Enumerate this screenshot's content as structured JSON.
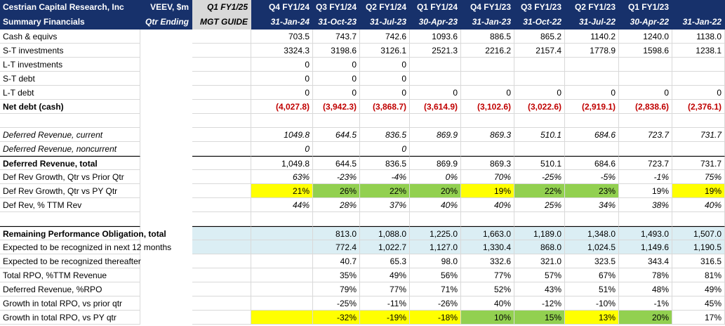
{
  "header": {
    "row1": [
      "Cestrian Capital Research, Inc",
      "VEEV, $m",
      "Q1 FY1/25",
      "Q4 FY1/24",
      "Q3 FY1/24",
      "Q2 FY1/24",
      "Q1 FY1/24",
      "Q4 FY1/23",
      "Q3 FY1/23",
      "Q2 FY1/23",
      "Q1 FY1/23",
      ""
    ],
    "row2": [
      "Summary Financials",
      "Qtr Ending",
      "MGT GUIDE",
      "31-Jan-24",
      "31-Oct-23",
      "31-Jul-23",
      "30-Apr-23",
      "31-Jan-23",
      "31-Oct-22",
      "31-Jul-22",
      "30-Apr-22",
      "31-Jan-22"
    ]
  },
  "highlight_colors": {
    "yellow": "#ffff00",
    "green": "#92d050",
    "light_blue": "#dbeef4",
    "header_navy": "#17316b",
    "negative_red": "#c00000"
  },
  "rows": [
    {
      "label": "Cash & equivs",
      "style": "",
      "values": [
        "",
        "703.5",
        "743.7",
        "742.6",
        "1093.6",
        "886.5",
        "865.2",
        "1140.2",
        "1240.0",
        "1138.0"
      ]
    },
    {
      "label": "S-T investments",
      "style": "",
      "values": [
        "",
        "3324.3",
        "3198.6",
        "3126.1",
        "2521.3",
        "2216.2",
        "2157.4",
        "1778.9",
        "1598.6",
        "1238.1"
      ]
    },
    {
      "label": "L-T investments",
      "style": "",
      "values": [
        "",
        "0",
        "0",
        "0",
        "",
        "",
        "",
        "",
        "",
        ""
      ]
    },
    {
      "label": "S-T debt",
      "style": "",
      "values": [
        "",
        "0",
        "0",
        "0",
        "",
        "",
        "",
        "",
        "",
        ""
      ]
    },
    {
      "label": "L-T debt",
      "style": "",
      "values": [
        "",
        "0",
        "0",
        "0",
        "0",
        "0",
        "0",
        "0",
        "0",
        "0"
      ]
    },
    {
      "label": "Net debt (cash)",
      "style": "bold",
      "neg": true,
      "values": [
        "",
        "(4,027.8)",
        "(3,942.3)",
        "(3,868.7)",
        "(3,614.9)",
        "(3,102.6)",
        "(3,022.6)",
        "(2,919.1)",
        "(2,838.6)",
        "(2,376.1)"
      ]
    },
    {
      "label": "",
      "style": "",
      "values": [
        "",
        "",
        "",
        "",
        "",
        "",
        "",
        "",
        "",
        ""
      ]
    },
    {
      "label": "Deferred Revenue, current",
      "style": "italic",
      "values": [
        "",
        "1049.8",
        "644.5",
        "836.5",
        "869.9",
        "869.3",
        "510.1",
        "684.6",
        "723.7",
        "731.7"
      ]
    },
    {
      "label": "Deferred Revenue, noncurrent",
      "style": "italic",
      "values": [
        "",
        "0",
        "",
        "0",
        "",
        "",
        "",
        "",
        "",
        ""
      ]
    },
    {
      "label": "Deferred Revenue, total",
      "style": "bold-label",
      "topline": true,
      "values": [
        "",
        "1,049.8",
        "644.5",
        "836.5",
        "869.9",
        "869.3",
        "510.1",
        "684.6",
        "723.7",
        "731.7"
      ]
    },
    {
      "label": "Def Rev Growth, Qtr vs Prior Qtr",
      "style": "italic-values",
      "values": [
        "",
        "63%",
        "-23%",
        "-4%",
        "0%",
        "70%",
        "-25%",
        "-5%",
        "-1%",
        "75%"
      ]
    },
    {
      "label": "Def Rev Growth, Qtr vs PY Qtr",
      "style": "",
      "values": [
        "",
        "21%",
        "26%",
        "22%",
        "20%",
        "19%",
        "22%",
        "23%",
        "19%",
        "19%"
      ],
      "hl": [
        "",
        "y",
        "g",
        "g",
        "g",
        "y",
        "g",
        "g",
        "",
        "y"
      ]
    },
    {
      "label": "Def Rev, % TTM Rev",
      "style": "italic-values",
      "values": [
        "",
        "44%",
        "28%",
        "37%",
        "40%",
        "40%",
        "25%",
        "34%",
        "38%",
        "40%"
      ]
    },
    {
      "label": "",
      "style": "",
      "values": [
        "",
        "",
        "",
        "",
        "",
        "",
        "",
        "",
        "",
        ""
      ]
    },
    {
      "label": "Remaining Performance Obligation, total",
      "style": "bold-label",
      "topline": true,
      "values": [
        "",
        "",
        "813.0",
        "1,088.0",
        "1,225.0",
        "1,663.0",
        "1,189.0",
        "1,348.0",
        "1,493.0",
        "1,507.0"
      ],
      "hl": [
        "b",
        "b",
        "b",
        "b",
        "b",
        "b",
        "b",
        "b",
        "b",
        "b"
      ]
    },
    {
      "label": "Expected to be recognized in next 12 months",
      "style": "",
      "values": [
        "",
        "",
        "772.4",
        "1,022.7",
        "1,127.0",
        "1,330.4",
        "868.0",
        "1,024.5",
        "1,149.6",
        "1,190.5"
      ],
      "hl": [
        "b",
        "b",
        "b",
        "b",
        "b",
        "b",
        "b",
        "b",
        "b",
        "b"
      ]
    },
    {
      "label": "Expected to be recognized thereafter",
      "style": "",
      "values": [
        "",
        "",
        "40.7",
        "65.3",
        "98.0",
        "332.6",
        "321.0",
        "323.5",
        "343.4",
        "316.5"
      ]
    },
    {
      "label": "Total RPO, %TTM Revenue",
      "style": "",
      "values": [
        "",
        "",
        "35%",
        "49%",
        "56%",
        "77%",
        "57%",
        "67%",
        "78%",
        "81%"
      ]
    },
    {
      "label": "Deferred Revenue, %RPO",
      "style": "",
      "values": [
        "",
        "",
        "79%",
        "77%",
        "71%",
        "52%",
        "43%",
        "51%",
        "48%",
        "49%"
      ]
    },
    {
      "label": "Growth in total RPO, vs prior qtr",
      "style": "",
      "values": [
        "",
        "",
        "-25%",
        "-11%",
        "-26%",
        "40%",
        "-12%",
        "-10%",
        "-1%",
        "45%"
      ]
    },
    {
      "label": "Growth in total RPO, vs PY qtr",
      "style": "",
      "values": [
        "",
        "",
        "-32%",
        "-19%",
        "-18%",
        "10%",
        "15%",
        "13%",
        "20%",
        "17%"
      ],
      "hl": [
        "",
        "y",
        "y",
        "y",
        "y",
        "g",
        "g",
        "y",
        "g",
        ""
      ]
    }
  ]
}
